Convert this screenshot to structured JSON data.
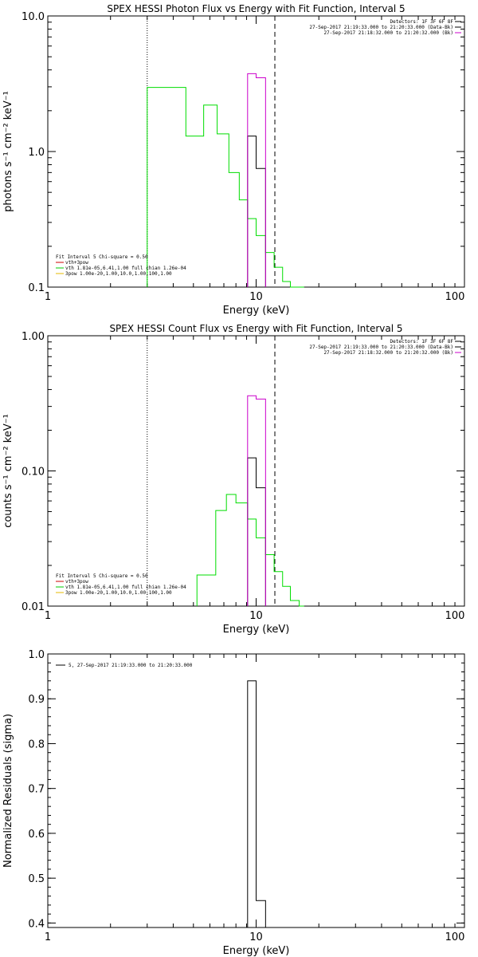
{
  "chart_data": [
    {
      "type": "line",
      "title": "SPEX HESSI Photon Flux vs Energy with Fit Function, Interval 5",
      "xlabel": "Energy (keV)",
      "ylabel": "photons s⁻¹ cm⁻² keV⁻¹",
      "xscale": "log",
      "yscale": "log",
      "xlim": [
        1,
        100
      ],
      "ylim": [
        0.1,
        10
      ],
      "x_ticks": [
        1,
        10,
        100
      ],
      "x_tick_labels": [
        "1",
        "10",
        "100"
      ],
      "y_ticks": [
        0.1,
        1,
        10
      ],
      "y_tick_labels": [
        "0.1",
        "1.0",
        "10.0"
      ],
      "vlines": [
        {
          "x": 3.0,
          "style": "dotted"
        },
        {
          "x": 12.3,
          "style": "dashed"
        }
      ],
      "legend_top_right": [
        {
          "text": "Detectors: 1F 3F 6F 8F",
          "color": "#000000"
        },
        {
          "text": "27-Sep-2017 21:19:33.000 to 21:20:33.000 (Data-Bk)",
          "color": "#000000"
        },
        {
          "text": "27-Sep-2017 21:18:32.000 to 21:20:32.000 (Bk)",
          "color": "#cc00cc"
        }
      ],
      "legend_bottom_left": [
        {
          "text": "Fit Interval  5   Chi-square = 0.50",
          "color": "#000000"
        },
        {
          "text": "vth+3pow",
          "color": "#cc0000"
        },
        {
          "text": "vth 1.81e-05,6.41,1.00  full chian 1.26e-04",
          "color": "#00cc00"
        },
        {
          "text": "3pow 1.00e-20,1.00,10.0,1.00,100,1.00",
          "color": "#e6b800"
        }
      ],
      "series": [
        {
          "color": "#00dd00",
          "edges": [
            3.0,
            3.8,
            4.6,
            5.6,
            6.5,
            7.4,
            8.3,
            9.1,
            10.0,
            11.1,
            12.2,
            13.4,
            14.6,
            16.1,
            17.0
          ],
          "values": [
            2.97,
            2.97,
            1.3,
            2.2,
            1.35,
            0.7,
            0.44,
            0.32,
            0.24,
            0.18,
            0.14,
            0.11,
            0.1,
            0.1
          ]
        },
        {
          "color": "#000000",
          "edges": [
            9.1,
            10.0,
            11.1
          ],
          "values": [
            1.3,
            0.75
          ]
        },
        {
          "color": "#cc00cc",
          "edges": [
            9.1,
            10.0,
            11.1
          ],
          "values": [
            3.75,
            3.5
          ]
        }
      ]
    },
    {
      "type": "line",
      "title": "SPEX HESSI Count Flux vs Energy with Fit Function, Interval 5",
      "xlabel": "Energy (keV)",
      "ylabel": "counts s⁻¹ cm⁻² keV⁻¹",
      "xscale": "log",
      "yscale": "log",
      "xlim": [
        1,
        100
      ],
      "ylim": [
        0.01,
        1
      ],
      "x_ticks": [
        1,
        10,
        100
      ],
      "x_tick_labels": [
        "1",
        "10",
        "100"
      ],
      "y_ticks": [
        0.01,
        0.1,
        1
      ],
      "y_tick_labels": [
        "0.01",
        "0.10",
        "1.00"
      ],
      "vlines": [
        {
          "x": 3.0,
          "style": "dotted"
        },
        {
          "x": 12.3,
          "style": "dashed"
        }
      ],
      "legend_top_right": [
        {
          "text": "Detectors: 1F 3F 6F 8F",
          "color": "#000000"
        },
        {
          "text": "27-Sep-2017 21:19:33.000 to 21:20:33.000 (Data-Bk)",
          "color": "#000000"
        },
        {
          "text": "27-Sep-2017 21:18:32.000 to 21:20:32.000 (Bk)",
          "color": "#cc00cc"
        }
      ],
      "legend_bottom_left": [
        {
          "text": "Fit Interval  5   Chi-square = 0.50",
          "color": "#000000"
        },
        {
          "text": "vth+3pow",
          "color": "#cc0000"
        },
        {
          "text": "vth 1.81e-05,6.41,1.00  full chian 1.26e-04",
          "color": "#00cc00"
        },
        {
          "text": "3pow 1.00e-20,1.00,10.0,1.00,100,1.00",
          "color": "#e6b800"
        }
      ],
      "series": [
        {
          "color": "#00dd00",
          "edges": [
            5.2,
            6.4,
            7.2,
            8.0,
            9.1,
            10.0,
            11.1,
            12.2,
            13.4,
            14.6,
            16.1,
            17.0
          ],
          "values": [
            0.017,
            0.051,
            0.067,
            0.058,
            0.044,
            0.032,
            0.024,
            0.018,
            0.014,
            0.011,
            0.01
          ]
        },
        {
          "color": "#000000",
          "edges": [
            9.1,
            10.0,
            11.1
          ],
          "values": [
            0.125,
            0.075
          ]
        },
        {
          "color": "#cc00cc",
          "edges": [
            9.1,
            10.0,
            11.1
          ],
          "values": [
            0.36,
            0.34
          ]
        }
      ]
    },
    {
      "type": "line",
      "title": "",
      "xlabel": "Energy (keV)",
      "ylabel": "Normalized Residuals (sigma)",
      "xscale": "log",
      "yscale": "linear",
      "xlim": [
        1,
        100
      ],
      "ylim": [
        0.39,
        1.0
      ],
      "x_ticks": [
        1,
        10,
        100
      ],
      "x_tick_labels": [
        "1",
        "10",
        "100"
      ],
      "y_ticks": [
        0.4,
        0.5,
        0.6,
        0.7,
        0.8,
        0.9,
        1.0
      ],
      "y_tick_labels": [
        "0.4",
        "0.5",
        "0.6",
        "0.7",
        "0.8",
        "0.9",
        "1.0"
      ],
      "vlines": [],
      "legend_top_right": [],
      "legend_bottom_left": [],
      "legend_top_left": [
        {
          "text": "5, 27-Sep-2017 21:19:33.000 to 21:20:33.000",
          "color": "#000000"
        }
      ],
      "series": [
        {
          "color": "#000000",
          "edges": [
            9.1,
            10.0,
            11.1
          ],
          "values": [
            0.94,
            0.45
          ]
        }
      ]
    }
  ]
}
